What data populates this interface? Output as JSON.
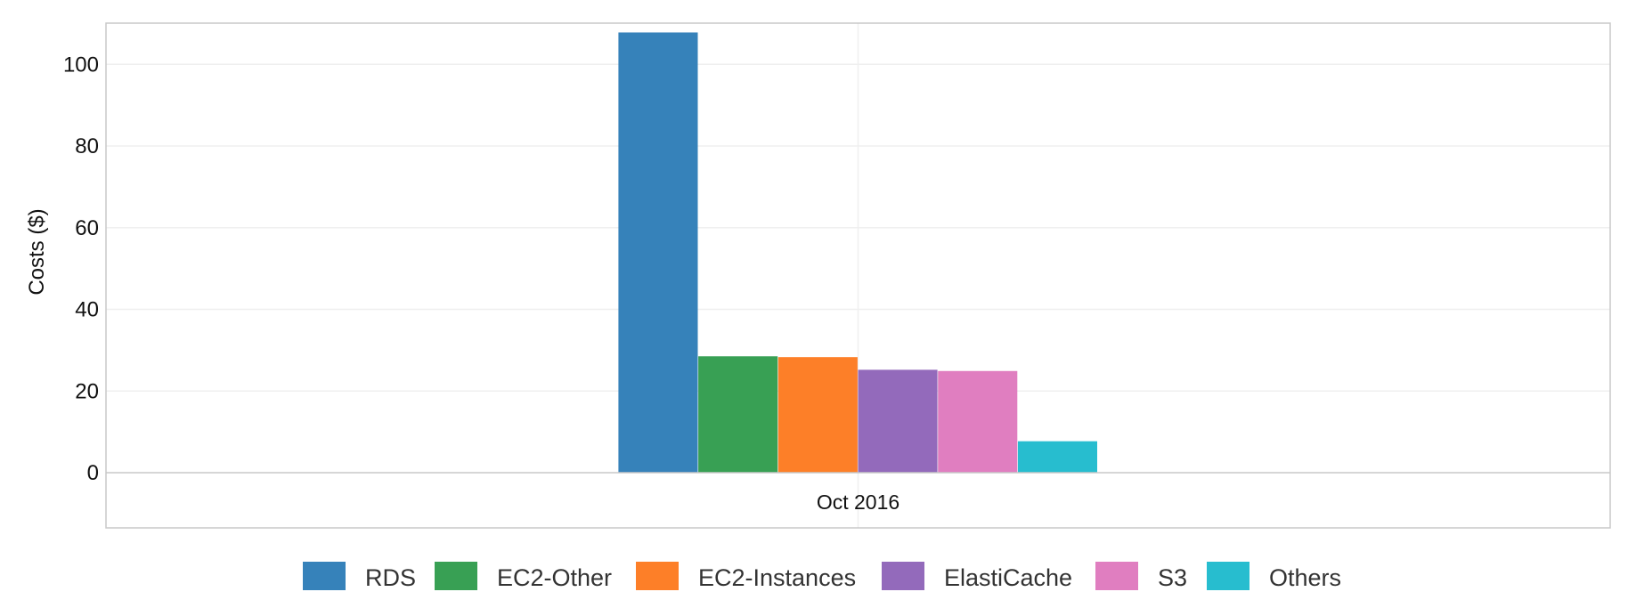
{
  "chart_data": {
    "type": "bar",
    "title": "",
    "xlabel": "",
    "ylabel": "Costs ($)",
    "categories": [
      "Oct 2016"
    ],
    "ylim": [
      -13.6,
      109.8
    ],
    "yticks": [
      0,
      20,
      40,
      60,
      80,
      100
    ],
    "grid": true,
    "legend_position": "bottom",
    "series": [
      {
        "name": "RDS",
        "color": "#3682ba",
        "values": [
          107.8
        ]
      },
      {
        "name": "EC2-Other",
        "color": "#38a054",
        "values": [
          28.5
        ]
      },
      {
        "name": "EC2-Instances",
        "color": "#fd7f28",
        "values": [
          28.3
        ]
      },
      {
        "name": "ElastiCache",
        "color": "#936abb",
        "values": [
          25.2
        ]
      },
      {
        "name": "S3",
        "color": "#e07ec0",
        "values": [
          24.9
        ]
      },
      {
        "name": "Others",
        "color": "#27bdcf",
        "values": [
          7.7
        ]
      }
    ]
  }
}
